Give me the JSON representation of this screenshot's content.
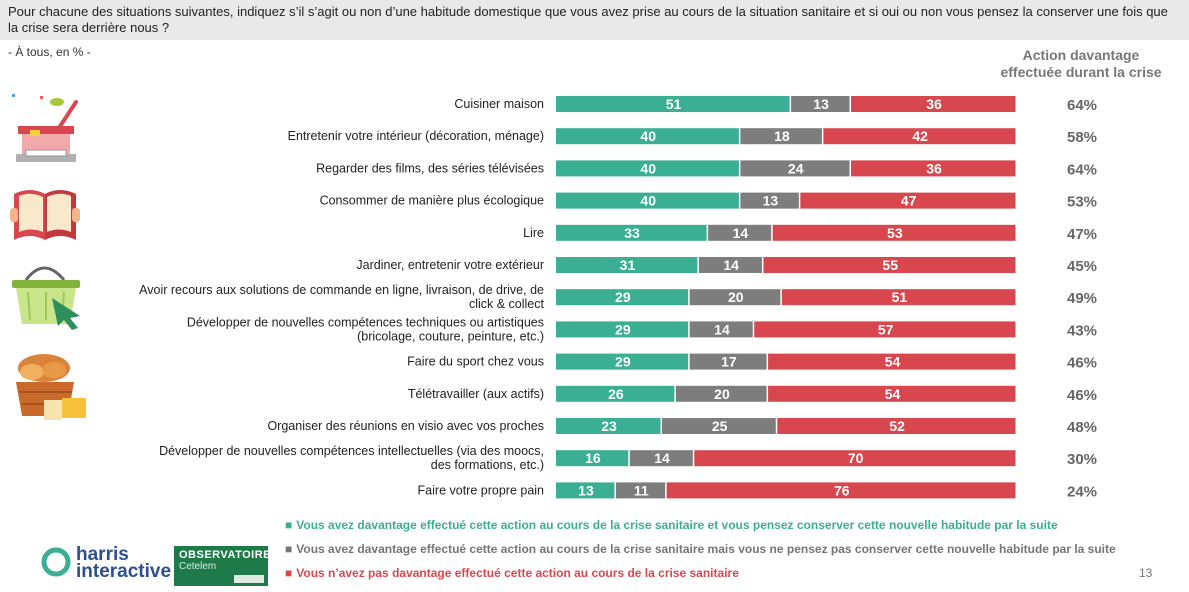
{
  "question": "Pour chacune des situations suivantes, indiquez s’il s’agit ou non d’une habitude domestique que vous avez prise au cours de la situation sanitaire et si oui ou non vous pensez la conserver une fois que la crise sera derrière nous ?",
  "base": "- À tous, en % -",
  "pct_header": [
    "Action davantage",
    "effectuée durant la crise"
  ],
  "page_number": "13",
  "logos": {
    "harris": [
      "harris",
      "interactive"
    ],
    "observatoire": [
      "OBSERVATOIRE",
      "Cetelem"
    ]
  },
  "icons": [
    "cooking-pot-icon",
    "open-book-icon",
    "shopping-basket-icon",
    "bread-basket-icon"
  ],
  "colors": {
    "green": "#3aaf93",
    "gray": "#7d7d7d",
    "red": "#d9474e"
  },
  "legend": [
    "Vous avez davantage effectué cette action au cours de la crise sanitaire et vous pensez conserver cette nouvelle habitude par la suite",
    "Vous avez davantage effectué cette action au cours de la crise sanitaire mais vous ne pensez pas conserver cette nouvelle habitude par la suite",
    "Vous n’avez pas davantage effectué cette action au cours de la crise sanitaire"
  ],
  "chart_data": {
    "type": "bar",
    "orientation": "horizontal",
    "stacked": true,
    "xlim": [
      0,
      100
    ],
    "grid": false,
    "legend_position": "bottom",
    "categories": [
      [
        "Cuisiner maison"
      ],
      [
        "Entretenir votre intérieur (décoration, ménage)"
      ],
      [
        "Regarder des films, des séries télévisées"
      ],
      [
        "Consommer de manière plus écologique"
      ],
      [
        "Lire"
      ],
      [
        "Jardiner, entretenir votre extérieur"
      ],
      [
        "Avoir recours aux solutions de commande en ligne, livraison, de drive, de",
        "click & collect"
      ],
      [
        "Développer de nouvelles compétences techniques ou artistiques",
        "(bricolage, couture, peinture, etc.)"
      ],
      [
        "Faire du sport chez vous"
      ],
      [
        "Télétravailler (aux actifs)"
      ],
      [
        "Organiser des réunions en visio avec vos proches"
      ],
      [
        "Développer de nouvelles compétences intellectuelles (via des moocs,",
        "des formations, etc.)"
      ],
      [
        "Faire votre propre pain"
      ]
    ],
    "series": [
      {
        "values": [
          51,
          40,
          40,
          40,
          33,
          31,
          29,
          29,
          29,
          26,
          23,
          16,
          13
        ],
        "color": "#3aaf93"
      },
      {
        "values": [
          13,
          18,
          24,
          13,
          14,
          14,
          20,
          14,
          17,
          20,
          25,
          14,
          11
        ],
        "color": "#7d7d7d"
      },
      {
        "values": [
          36,
          42,
          36,
          47,
          53,
          55,
          51,
          57,
          54,
          54,
          52,
          70,
          76
        ],
        "color": "#d9474e"
      }
    ],
    "percent_labels": [
      "64%",
      "58%",
      "64%",
      "53%",
      "47%",
      "45%",
      "49%",
      "43%",
      "46%",
      "46%",
      "48%",
      "30%",
      "24%"
    ]
  }
}
